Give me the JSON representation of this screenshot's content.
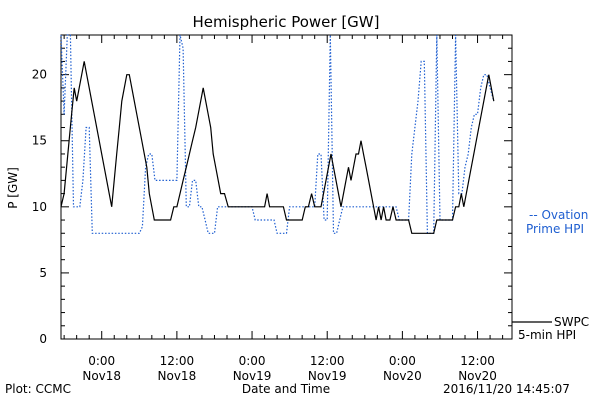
{
  "chart_data": {
    "type": "line",
    "title": "Hemispheric Power [GW]",
    "ylabel": "P [GW]",
    "xlabel": "Date and Time",
    "ylim": [
      0,
      23
    ],
    "yticks": [
      0,
      5,
      10,
      15,
      20
    ],
    "xlim": [
      -6.5,
      65.5
    ],
    "xticks": [
      {
        "h": 0,
        "time": "0:00",
        "date": "Nov18"
      },
      {
        "h": 12,
        "time": "12:00",
        "date": "Nov18"
      },
      {
        "h": 24,
        "time": "0:00",
        "date": "Nov19"
      },
      {
        "h": 36,
        "time": "12:00",
        "date": "Nov19"
      },
      {
        "h": 48,
        "time": "0:00",
        "date": "Nov20"
      },
      {
        "h": 60,
        "time": "12:00",
        "date": "Nov20"
      }
    ],
    "series": [
      {
        "name": "SWPC 5-min HPI",
        "color": "#000000",
        "style": "solid",
        "points": [
          [
            -6.5,
            10
          ],
          [
            -6,
            11
          ],
          [
            -5.6,
            13
          ],
          [
            -5.2,
            15
          ],
          [
            -4.8,
            17
          ],
          [
            -4.4,
            19
          ],
          [
            -4,
            18
          ],
          [
            -3.6,
            19
          ],
          [
            -3.2,
            20
          ],
          [
            -2.8,
            21
          ],
          [
            -2.4,
            20
          ],
          [
            -2,
            19
          ],
          [
            -1.6,
            18
          ],
          [
            -1.2,
            17
          ],
          [
            -0.8,
            16
          ],
          [
            -0.4,
            15
          ],
          [
            0,
            14
          ],
          [
            0.4,
            13
          ],
          [
            0.8,
            12
          ],
          [
            1.2,
            11
          ],
          [
            1.6,
            10
          ],
          [
            2,
            12
          ],
          [
            2.4,
            14
          ],
          [
            2.8,
            16
          ],
          [
            3.2,
            18
          ],
          [
            3.6,
            19
          ],
          [
            4,
            20
          ],
          [
            4.4,
            20
          ],
          [
            4.8,
            19
          ],
          [
            5.2,
            18
          ],
          [
            5.6,
            17
          ],
          [
            6,
            16
          ],
          [
            6.4,
            15
          ],
          [
            6.8,
            14
          ],
          [
            7.2,
            13
          ],
          [
            7.6,
            11
          ],
          [
            8,
            10
          ],
          [
            8.4,
            9
          ],
          [
            11,
            9
          ],
          [
            11.5,
            10
          ],
          [
            12,
            10
          ],
          [
            12.5,
            11
          ],
          [
            13,
            12
          ],
          [
            13.5,
            13
          ],
          [
            14,
            14
          ],
          [
            14.5,
            15
          ],
          [
            15,
            16
          ],
          [
            15.4,
            17
          ],
          [
            15.8,
            18
          ],
          [
            16.2,
            19
          ],
          [
            16.6,
            18
          ],
          [
            17,
            17
          ],
          [
            17.4,
            16
          ],
          [
            17.8,
            14
          ],
          [
            18.2,
            13
          ],
          [
            18.6,
            12
          ],
          [
            19,
            11
          ],
          [
            19.6,
            11
          ],
          [
            20.2,
            10
          ],
          [
            26,
            10
          ],
          [
            26.4,
            11
          ],
          [
            26.8,
            10
          ],
          [
            29,
            10
          ],
          [
            29.5,
            9
          ],
          [
            32,
            9
          ],
          [
            32.5,
            10
          ],
          [
            33,
            10
          ],
          [
            33.5,
            11
          ],
          [
            34,
            10
          ],
          [
            35,
            10
          ],
          [
            35.4,
            11
          ],
          [
            35.8,
            12
          ],
          [
            36.2,
            13
          ],
          [
            36.6,
            14
          ],
          [
            37,
            13
          ],
          [
            37.4,
            12
          ],
          [
            37.8,
            11
          ],
          [
            38.2,
            10
          ],
          [
            38.6,
            11
          ],
          [
            39,
            12
          ],
          [
            39.4,
            13
          ],
          [
            39.8,
            12
          ],
          [
            40.2,
            13
          ],
          [
            40.6,
            14
          ],
          [
            41,
            14
          ],
          [
            41.4,
            15
          ],
          [
            41.8,
            14
          ],
          [
            42.2,
            13
          ],
          [
            42.6,
            12
          ],
          [
            43,
            11
          ],
          [
            43.4,
            10
          ],
          [
            43.8,
            9
          ],
          [
            44.2,
            10
          ],
          [
            44.6,
            9
          ],
          [
            45,
            10
          ],
          [
            45.4,
            9
          ],
          [
            46,
            9
          ],
          [
            46.5,
            10
          ],
          [
            47,
            9
          ],
          [
            49,
            9
          ],
          [
            49.5,
            8
          ],
          [
            53,
            8
          ],
          [
            53.5,
            9
          ],
          [
            56,
            9
          ],
          [
            56.5,
            10
          ],
          [
            57,
            10
          ],
          [
            57.4,
            11
          ],
          [
            57.8,
            10
          ],
          [
            58.2,
            11
          ],
          [
            58.6,
            12
          ],
          [
            59,
            13
          ],
          [
            59.4,
            14
          ],
          [
            59.8,
            15
          ],
          [
            60.2,
            16
          ],
          [
            60.6,
            17
          ],
          [
            61,
            18
          ],
          [
            61.4,
            19
          ],
          [
            61.8,
            20
          ],
          [
            62.2,
            19
          ],
          [
            62.6,
            18
          ]
        ]
      },
      {
        "name": "Ovation Prime HPI",
        "color": "#1f5fd1",
        "style": "dotted",
        "points": [
          [
            -6.5,
            23
          ],
          [
            -6,
            17
          ],
          [
            -5.5,
            23
          ],
          [
            -5,
            23
          ],
          [
            -4.5,
            10
          ],
          [
            -3.5,
            10
          ],
          [
            -3,
            12
          ],
          [
            -2.5,
            16
          ],
          [
            -2,
            16
          ],
          [
            -1.5,
            8
          ],
          [
            6,
            8
          ],
          [
            6.5,
            8.5
          ],
          [
            7,
            13
          ],
          [
            7.5,
            14
          ],
          [
            8,
            14
          ],
          [
            8.5,
            12
          ],
          [
            12,
            12
          ],
          [
            12.5,
            23
          ],
          [
            13,
            22
          ],
          [
            13.5,
            10
          ],
          [
            14,
            10
          ],
          [
            14.5,
            12
          ],
          [
            15,
            12
          ],
          [
            15.5,
            10
          ],
          [
            16,
            10
          ],
          [
            16.5,
            9
          ],
          [
            17,
            8
          ],
          [
            18,
            8
          ],
          [
            18.5,
            10
          ],
          [
            24,
            10
          ],
          [
            24.5,
            9
          ],
          [
            27.5,
            9
          ],
          [
            28,
            8
          ],
          [
            29.5,
            8
          ],
          [
            30,
            10
          ],
          [
            34,
            10
          ],
          [
            34.5,
            14
          ],
          [
            35,
            14
          ],
          [
            35.5,
            9
          ],
          [
            36,
            9
          ],
          [
            36.5,
            23
          ],
          [
            37,
            8
          ],
          [
            37.5,
            8
          ],
          [
            38,
            9
          ],
          [
            38.5,
            10
          ],
          [
            47,
            10
          ],
          [
            47.5,
            9
          ],
          [
            49,
            9
          ],
          [
            49.5,
            14
          ],
          [
            50,
            16
          ],
          [
            50.5,
            18
          ],
          [
            51,
            21
          ],
          [
            51.5,
            21
          ],
          [
            52,
            8
          ],
          [
            53,
            8
          ],
          [
            53.5,
            23
          ],
          [
            54,
            9
          ],
          [
            56,
            9
          ],
          [
            56.5,
            23
          ],
          [
            57,
            11
          ],
          [
            57.5,
            11
          ],
          [
            58,
            13
          ],
          [
            58.5,
            14
          ],
          [
            59,
            16
          ],
          [
            59.5,
            17
          ],
          [
            60,
            17
          ],
          [
            60.5,
            19
          ],
          [
            61,
            20
          ],
          [
            61.5,
            20
          ],
          [
            62,
            19
          ],
          [
            62.6,
            18
          ]
        ]
      }
    ],
    "legend": {
      "placement": "right",
      "ovation_line1": "-- Ovation",
      "ovation_line2": "Prime HPI",
      "swpc_line1": "SWPC",
      "swpc_line2": "5-min HPI"
    },
    "footer": {
      "left": "Plot: CCMC",
      "right": "2016/11/20 14:45:07"
    }
  }
}
